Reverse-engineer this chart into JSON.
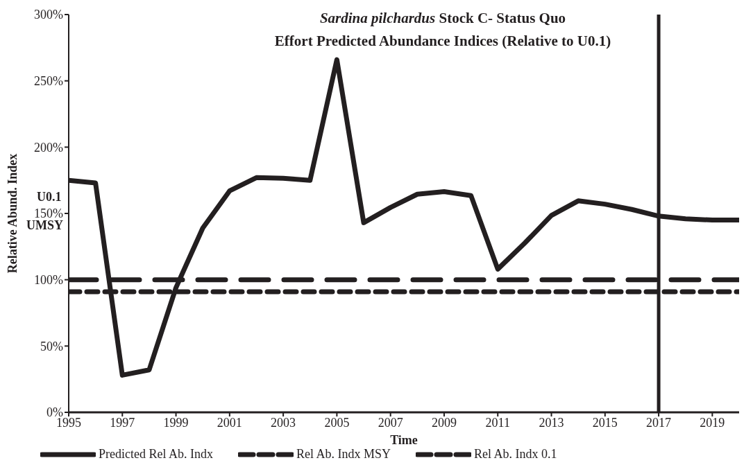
{
  "chart_data": {
    "type": "line",
    "title": "Sardina pilchardus Stock C- Status Quo Effort Predicted Abundance Indices (Relative to U0.1)",
    "xlabel": "Time",
    "ylabel": "Relative Abund. Index",
    "annotations": [
      "U0.1",
      "UMSY"
    ],
    "x": [
      1995,
      1996,
      1997,
      1998,
      1999,
      2000,
      2001,
      2002,
      2003,
      2004,
      2005,
      2006,
      2007,
      2008,
      2009,
      2010,
      2011,
      2012,
      2013,
      2014,
      2015,
      2016,
      2017,
      2018,
      2019,
      2020
    ],
    "series": [
      {
        "name": "Predicted Rel Ab. Indx",
        "color": "#231f20",
        "line_style": "solid",
        "values": [
          175,
          173,
          28,
          32,
          94,
          139,
          167,
          177,
          176.5,
          175,
          266,
          143,
          154.5,
          164.5,
          166.5,
          163.5,
          108,
          127.5,
          148.5,
          159.5,
          157,
          153,
          148,
          146,
          145,
          145
        ]
      },
      {
        "name": "Rel Ab. Indx MSY",
        "color": "#231f20",
        "line_style": "dashed",
        "values": [
          91,
          91,
          91,
          91,
          91,
          91,
          91,
          91,
          91,
          91,
          91,
          91,
          91,
          91,
          91,
          91,
          91,
          91,
          91,
          91,
          91,
          91,
          91,
          91,
          91,
          91
        ]
      },
      {
        "name": "Rel Ab. Indx  0.1",
        "color": "#231f20",
        "line_style": "longdash",
        "values": [
          100,
          100,
          100,
          100,
          100,
          100,
          100,
          100,
          100,
          100,
          100,
          100,
          100,
          100,
          100,
          100,
          100,
          100,
          100,
          100,
          100,
          100,
          100,
          100,
          100,
          100
        ]
      }
    ],
    "xlim": [
      1995,
      2020
    ],
    "xticks": [
      1995,
      1997,
      1999,
      2001,
      2003,
      2005,
      2007,
      2009,
      2011,
      2013,
      2015,
      2017,
      2019
    ],
    "ylim": [
      0,
      300
    ],
    "yticks": [
      {
        "value": 0,
        "label": "0%"
      },
      {
        "value": 50,
        "label": "50%"
      },
      {
        "value": 100,
        "label": "100%"
      },
      {
        "value": 150,
        "label": "150%"
      },
      {
        "value": 200,
        "label": "200%"
      },
      {
        "value": 250,
        "label": "250%"
      },
      {
        "value": 300,
        "label": "300%"
      }
    ],
    "ref_lines": [
      {
        "axis": "x",
        "value": 2017,
        "color": "#231f20",
        "line_style": "solid"
      }
    ],
    "legend": "bottom",
    "marker": "none"
  }
}
